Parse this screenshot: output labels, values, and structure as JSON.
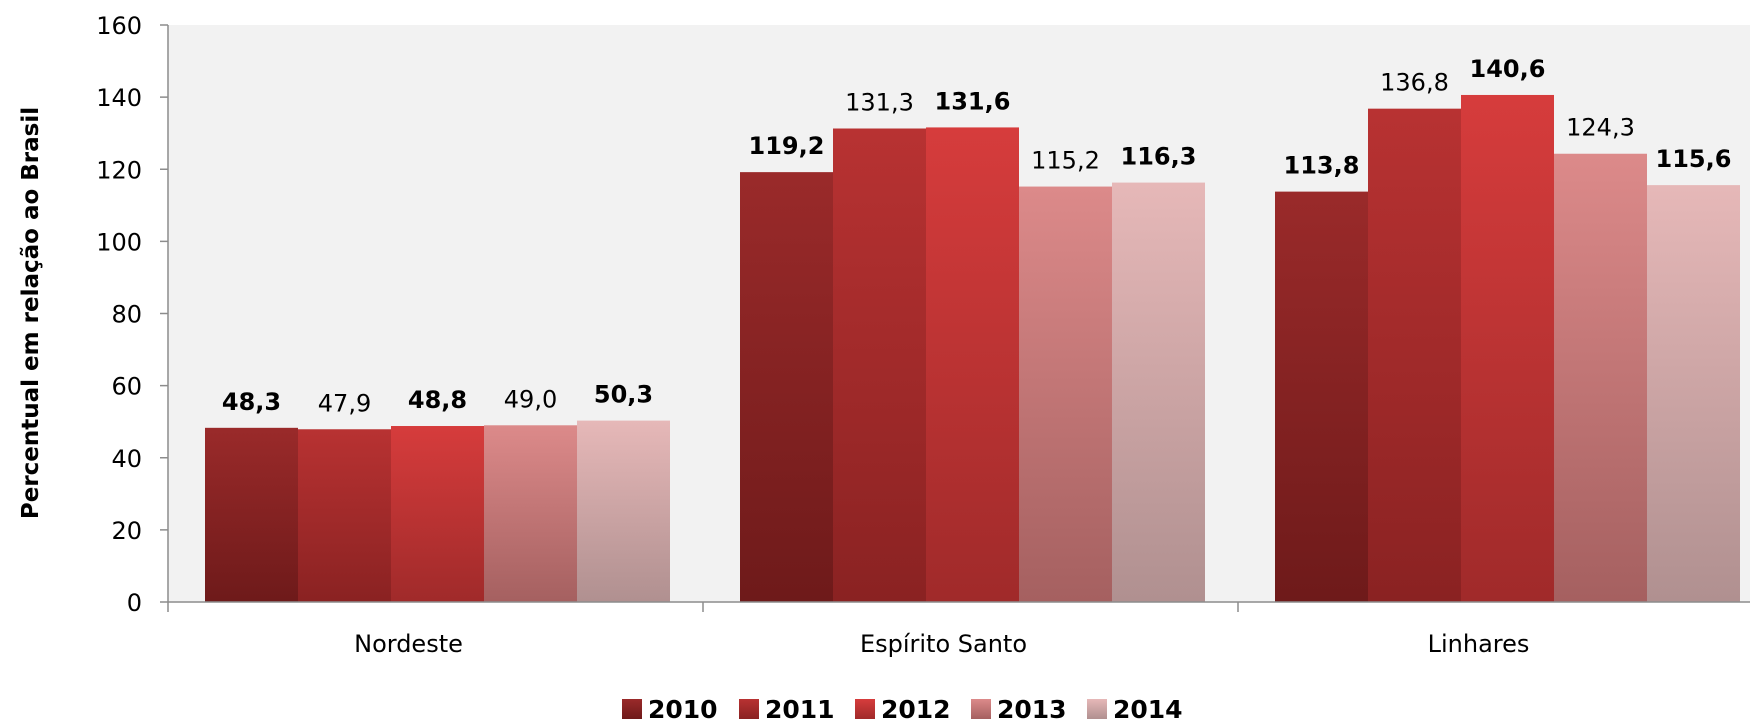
{
  "chart_data": {
    "type": "bar",
    "title": "",
    "xlabel": "",
    "ylabel": "Percentual em relação ao Brasil",
    "ylim": [
      0,
      160
    ],
    "yticks": [
      0,
      20,
      40,
      60,
      80,
      100,
      120,
      140,
      160
    ],
    "categories": [
      "Nordeste",
      "Espírito Santo",
      "Linhares"
    ],
    "series": [
      {
        "name": "2010",
        "values": [
          48.3,
          119.2,
          113.8
        ],
        "labels": [
          "48,3",
          "119,2",
          "113,8"
        ],
        "bold": [
          true,
          true,
          true
        ],
        "color_top": "#9a2a2a",
        "color_bottom": "#6e1a1a"
      },
      {
        "name": "2011",
        "values": [
          47.9,
          131.3,
          136.8
        ],
        "labels": [
          "47,9",
          "131,3",
          "136,8"
        ],
        "bold": [
          false,
          false,
          false
        ],
        "color_top": "#b83232",
        "color_bottom": "#8a2222"
      },
      {
        "name": "2012",
        "values": [
          48.8,
          131.6,
          140.6
        ],
        "labels": [
          "48,8",
          "131,6",
          "140,6"
        ],
        "bold": [
          true,
          true,
          true
        ],
        "color_top": "#d63c3c",
        "color_bottom": "#a02a2a"
      },
      {
        "name": "2013",
        "values": [
          49.0,
          115.2,
          124.3
        ],
        "labels": [
          "49,0",
          "115,2",
          "124,3"
        ],
        "bold": [
          false,
          false,
          false
        ],
        "color_top": "#dc8a8a",
        "color_bottom": "#a56060"
      },
      {
        "name": "2014",
        "values": [
          50.3,
          116.3,
          115.6
        ],
        "labels": [
          "50,3",
          "116,3",
          "115,6"
        ],
        "bold": [
          true,
          true,
          true
        ],
        "color_top": "#e6b8b8",
        "color_bottom": "#b09090"
      }
    ],
    "grid": false,
    "legend_position": "bottom-center",
    "plot_background": "#f2f2f2"
  }
}
